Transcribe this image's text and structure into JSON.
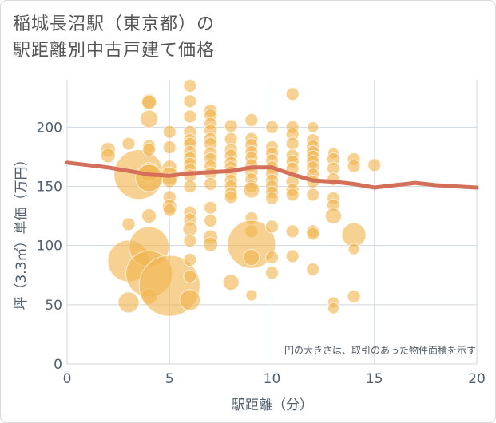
{
  "chart_data": {
    "type": "scatter",
    "title_lines": [
      "稲城長沼駅（東京都）の",
      "駅距離別中古戸建て価格"
    ],
    "xlabel": "駅距離（分）",
    "ylabel": "坪（3.3㎡）単価（万円）",
    "xlim": [
      0,
      20
    ],
    "ylim": [
      0,
      240
    ],
    "xticks": [
      0,
      5,
      10,
      15,
      20
    ],
    "yticks": [
      0,
      50,
      100,
      150,
      200
    ],
    "grid": true,
    "annotation": "円の大きさは、取引のあった物件面積を示す",
    "colors": {
      "bubble": "#f0b44f",
      "line": "#d4705a",
      "grid": "#d0d7de",
      "axis_text": "#506070"
    },
    "trend_line": {
      "x": [
        0,
        1,
        2,
        3,
        4,
        5,
        6,
        7,
        8,
        9,
        10,
        11,
        12,
        13,
        14,
        15,
        16,
        17,
        18,
        19,
        20
      ],
      "y": [
        170,
        168,
        166,
        163,
        160,
        159,
        161,
        162,
        163,
        166,
        166,
        160,
        155,
        154,
        152,
        149,
        151,
        153,
        151,
        150,
        149
      ]
    },
    "points": [
      {
        "x": 2,
        "y": 181,
        "s": 9
      },
      {
        "x": 2,
        "y": 176,
        "s": 9
      },
      {
        "x": 3,
        "y": 186,
        "s": 8
      },
      {
        "x": 3,
        "y": 118,
        "s": 8
      },
      {
        "x": 3,
        "y": 87,
        "s": 26
      },
      {
        "x": 3,
        "y": 52,
        "s": 13
      },
      {
        "x": 3.5,
        "y": 160,
        "s": 31
      },
      {
        "x": 4,
        "y": 222,
        "s": 9
      },
      {
        "x": 4,
        "y": 221,
        "s": 9
      },
      {
        "x": 4,
        "y": 207,
        "s": 11
      },
      {
        "x": 4,
        "y": 184,
        "s": 8
      },
      {
        "x": 4,
        "y": 181,
        "s": 8
      },
      {
        "x": 4,
        "y": 162,
        "s": 12
      },
      {
        "x": 4,
        "y": 157,
        "s": 17
      },
      {
        "x": 4,
        "y": 125,
        "s": 9
      },
      {
        "x": 4,
        "y": 99,
        "s": 25
      },
      {
        "x": 4,
        "y": 76,
        "s": 29
      },
      {
        "x": 4,
        "y": 57,
        "s": 10
      },
      {
        "x": 5,
        "y": 196,
        "s": 8
      },
      {
        "x": 5,
        "y": 183,
        "s": 8
      },
      {
        "x": 5,
        "y": 166,
        "s": 9
      },
      {
        "x": 5,
        "y": 159,
        "s": 11
      },
      {
        "x": 5,
        "y": 155,
        "s": 9
      },
      {
        "x": 5,
        "y": 141,
        "s": 8
      },
      {
        "x": 5,
        "y": 133,
        "s": 9
      },
      {
        "x": 5,
        "y": 130,
        "s": 8
      },
      {
        "x": 5,
        "y": 66,
        "s": 38
      },
      {
        "x": 6,
        "y": 235,
        "s": 8
      },
      {
        "x": 6,
        "y": 222,
        "s": 8
      },
      {
        "x": 6,
        "y": 209,
        "s": 8
      },
      {
        "x": 6,
        "y": 196,
        "s": 8
      },
      {
        "x": 6,
        "y": 189,
        "s": 8
      },
      {
        "x": 6,
        "y": 186,
        "s": 8
      },
      {
        "x": 6,
        "y": 179,
        "s": 8
      },
      {
        "x": 6,
        "y": 174,
        "s": 8
      },
      {
        "x": 6,
        "y": 169,
        "s": 8
      },
      {
        "x": 6,
        "y": 164,
        "s": 8
      },
      {
        "x": 6,
        "y": 159,
        "s": 8
      },
      {
        "x": 6,
        "y": 150,
        "s": 8
      },
      {
        "x": 6,
        "y": 128,
        "s": 8
      },
      {
        "x": 6,
        "y": 122,
        "s": 8
      },
      {
        "x": 6,
        "y": 114,
        "s": 9
      },
      {
        "x": 6,
        "y": 104,
        "s": 8
      },
      {
        "x": 6,
        "y": 88,
        "s": 8
      },
      {
        "x": 6,
        "y": 74,
        "s": 8
      },
      {
        "x": 6,
        "y": 54,
        "s": 13
      },
      {
        "x": 7,
        "y": 214,
        "s": 8
      },
      {
        "x": 7,
        "y": 210,
        "s": 8
      },
      {
        "x": 7,
        "y": 203,
        "s": 8
      },
      {
        "x": 7,
        "y": 197,
        "s": 8
      },
      {
        "x": 7,
        "y": 190,
        "s": 8
      },
      {
        "x": 7,
        "y": 186,
        "s": 8
      },
      {
        "x": 7,
        "y": 178,
        "s": 8
      },
      {
        "x": 7,
        "y": 173,
        "s": 8
      },
      {
        "x": 7,
        "y": 167,
        "s": 8
      },
      {
        "x": 7,
        "y": 161,
        "s": 8
      },
      {
        "x": 7,
        "y": 152,
        "s": 8
      },
      {
        "x": 7,
        "y": 132,
        "s": 8
      },
      {
        "x": 7,
        "y": 121,
        "s": 8
      },
      {
        "x": 7,
        "y": 107,
        "s": 9
      },
      {
        "x": 7,
        "y": 101,
        "s": 9
      },
      {
        "x": 8,
        "y": 201,
        "s": 8
      },
      {
        "x": 8,
        "y": 190,
        "s": 8
      },
      {
        "x": 8,
        "y": 181,
        "s": 8
      },
      {
        "x": 8,
        "y": 176,
        "s": 8
      },
      {
        "x": 8,
        "y": 170,
        "s": 8
      },
      {
        "x": 8,
        "y": 166,
        "s": 8
      },
      {
        "x": 8,
        "y": 162,
        "s": 8
      },
      {
        "x": 8,
        "y": 155,
        "s": 8
      },
      {
        "x": 8,
        "y": 150,
        "s": 8
      },
      {
        "x": 8,
        "y": 144,
        "s": 8
      },
      {
        "x": 8,
        "y": 141,
        "s": 8
      },
      {
        "x": 8,
        "y": 69,
        "s": 10
      },
      {
        "x": 9,
        "y": 206,
        "s": 8
      },
      {
        "x": 9,
        "y": 190,
        "s": 8
      },
      {
        "x": 9,
        "y": 185,
        "s": 8
      },
      {
        "x": 9,
        "y": 179,
        "s": 8
      },
      {
        "x": 9,
        "y": 174,
        "s": 8
      },
      {
        "x": 9,
        "y": 168,
        "s": 8
      },
      {
        "x": 9,
        "y": 162,
        "s": 8
      },
      {
        "x": 9,
        "y": 156,
        "s": 8
      },
      {
        "x": 9,
        "y": 150,
        "s": 8
      },
      {
        "x": 9,
        "y": 147,
        "s": 10
      },
      {
        "x": 9,
        "y": 123,
        "s": 8
      },
      {
        "x": 9,
        "y": 112,
        "s": 8
      },
      {
        "x": 9,
        "y": 101,
        "s": 30
      },
      {
        "x": 9,
        "y": 90,
        "s": 10
      },
      {
        "x": 9,
        "y": 58,
        "s": 7
      },
      {
        "x": 10,
        "y": 200,
        "s": 8
      },
      {
        "x": 10,
        "y": 183,
        "s": 8
      },
      {
        "x": 10,
        "y": 178,
        "s": 8
      },
      {
        "x": 10,
        "y": 172,
        "s": 8
      },
      {
        "x": 10,
        "y": 166,
        "s": 8
      },
      {
        "x": 10,
        "y": 161,
        "s": 8
      },
      {
        "x": 10,
        "y": 155,
        "s": 8
      },
      {
        "x": 10,
        "y": 150,
        "s": 8
      },
      {
        "x": 10,
        "y": 145,
        "s": 8
      },
      {
        "x": 10,
        "y": 140,
        "s": 8
      },
      {
        "x": 10,
        "y": 116,
        "s": 8
      },
      {
        "x": 10,
        "y": 90,
        "s": 8
      },
      {
        "x": 10,
        "y": 77,
        "s": 8
      },
      {
        "x": 11,
        "y": 228,
        "s": 8
      },
      {
        "x": 11,
        "y": 200,
        "s": 8
      },
      {
        "x": 11,
        "y": 194,
        "s": 8
      },
      {
        "x": 11,
        "y": 186,
        "s": 8
      },
      {
        "x": 11,
        "y": 176,
        "s": 8
      },
      {
        "x": 11,
        "y": 171,
        "s": 8
      },
      {
        "x": 11,
        "y": 165,
        "s": 8
      },
      {
        "x": 11,
        "y": 154,
        "s": 8
      },
      {
        "x": 11,
        "y": 147,
        "s": 8
      },
      {
        "x": 11,
        "y": 143,
        "s": 8
      },
      {
        "x": 11,
        "y": 112,
        "s": 8
      },
      {
        "x": 11,
        "y": 91,
        "s": 8
      },
      {
        "x": 12,
        "y": 200,
        "s": 7
      },
      {
        "x": 12,
        "y": 189,
        "s": 8
      },
      {
        "x": 12,
        "y": 184,
        "s": 8
      },
      {
        "x": 12,
        "y": 179,
        "s": 8
      },
      {
        "x": 12,
        "y": 175,
        "s": 8
      },
      {
        "x": 12,
        "y": 171,
        "s": 8
      },
      {
        "x": 12,
        "y": 166,
        "s": 8
      },
      {
        "x": 12,
        "y": 160,
        "s": 8
      },
      {
        "x": 12,
        "y": 154,
        "s": 8
      },
      {
        "x": 12,
        "y": 143,
        "s": 8
      },
      {
        "x": 12,
        "y": 112,
        "s": 8
      },
      {
        "x": 12,
        "y": 110,
        "s": 8
      },
      {
        "x": 12,
        "y": 80,
        "s": 8
      },
      {
        "x": 13,
        "y": 178,
        "s": 7
      },
      {
        "x": 13,
        "y": 173,
        "s": 8
      },
      {
        "x": 13,
        "y": 165,
        "s": 8
      },
      {
        "x": 13,
        "y": 156,
        "s": 8
      },
      {
        "x": 13,
        "y": 140,
        "s": 8
      },
      {
        "x": 13,
        "y": 134,
        "s": 8
      },
      {
        "x": 13,
        "y": 125,
        "s": 10
      },
      {
        "x": 13,
        "y": 52,
        "s": 7
      },
      {
        "x": 13,
        "y": 47,
        "s": 7
      },
      {
        "x": 14,
        "y": 173,
        "s": 8
      },
      {
        "x": 14,
        "y": 167,
        "s": 8
      },
      {
        "x": 14,
        "y": 109,
        "s": 15
      },
      {
        "x": 14,
        "y": 97,
        "s": 7
      },
      {
        "x": 14,
        "y": 57,
        "s": 8
      },
      {
        "x": 15,
        "y": 168,
        "s": 8
      }
    ]
  }
}
